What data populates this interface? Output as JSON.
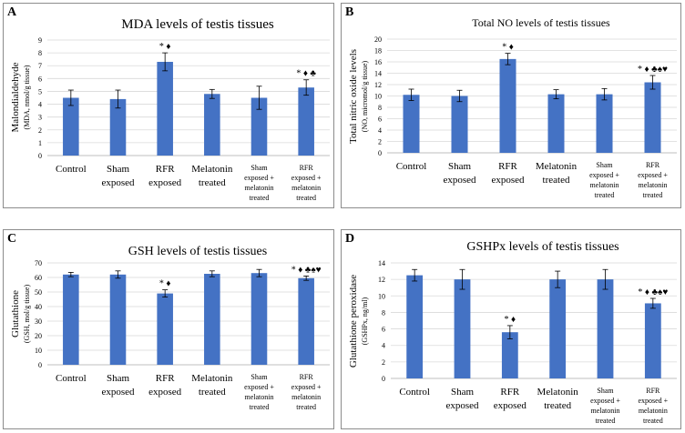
{
  "chart_data": [
    {
      "panel_label": "A",
      "type": "bar",
      "title": "MDA levels of testis tissues",
      "ylabel": "Malondialdehyde",
      "ylabel_sub": "(MDA, nmol/g tissue)",
      "xlabel": "",
      "ylim": [
        0,
        9
      ],
      "yticks": [
        "0",
        "1",
        "2",
        "3",
        "4",
        "5",
        "6",
        "7",
        "8",
        "9"
      ],
      "categories": [
        [
          "Control"
        ],
        [
          "Sham",
          "exposed"
        ],
        [
          "RFR",
          "exposed"
        ],
        [
          "Melatonin",
          "treated"
        ],
        [
          "Sham",
          "exposed +",
          "melatonin",
          "treated"
        ],
        [
          "RFR",
          "exposed +",
          "melatonin",
          "treated"
        ]
      ],
      "values": [
        4.5,
        4.4,
        7.3,
        4.8,
        4.5,
        5.3
      ],
      "errors": [
        0.6,
        0.7,
        0.7,
        0.35,
        0.9,
        0.6
      ],
      "annotations": [
        "",
        "",
        "* ♦",
        "",
        "",
        "* ♦ ♣"
      ],
      "bar_color": "#4472c4"
    },
    {
      "panel_label": "B",
      "type": "bar",
      "title": "Total NO levels of testis tissues",
      "ylabel": "Total nitric oxide levels",
      "ylabel_sub": "(NO, micromol/g tissue)",
      "xlabel": "",
      "ylim": [
        0,
        20
      ],
      "yticks": [
        "0",
        "2",
        "4",
        "6",
        "8",
        "10",
        "12",
        "14",
        "16",
        "18",
        "20"
      ],
      "categories": [
        [
          "Control"
        ],
        [
          "Sham",
          "exposed"
        ],
        [
          "RFR",
          "exposed"
        ],
        [
          "Melatonin",
          "treated"
        ],
        [
          "Sham",
          "exposed +",
          "melatonin",
          "treated"
        ],
        [
          "RFR",
          "exposed +",
          "melatonin",
          "treated"
        ]
      ],
      "values": [
        10.2,
        10.0,
        16.5,
        10.3,
        10.3,
        12.4
      ],
      "errors": [
        1.0,
        1.0,
        1.0,
        0.8,
        1.0,
        1.2
      ],
      "annotations": [
        "",
        "",
        "* ♦",
        "",
        "",
        "* ♦ ♣♠♥"
      ],
      "bar_color": "#4472c4"
    },
    {
      "panel_label": "C",
      "type": "bar",
      "title": "GSH levels of testis tissues",
      "ylabel": "Glutathione",
      "ylabel_sub": "(GSH, mol/g tissue)",
      "xlabel": "",
      "ylim": [
        0,
        70
      ],
      "yticks": [
        "0",
        "10",
        "20",
        "30",
        "40",
        "50",
        "60",
        "70"
      ],
      "categories": [
        [
          "Control"
        ],
        [
          "Sham",
          "exposed"
        ],
        [
          "RFR",
          "exposed"
        ],
        [
          "Melatonin",
          "treated"
        ],
        [
          "Sham",
          "exposed +",
          "melatonin",
          "treated"
        ],
        [
          "RFR",
          "exposed +",
          "melatonin",
          "treated"
        ]
      ],
      "values": [
        62,
        62,
        49,
        62.5,
        63,
        59.5
      ],
      "errors": [
        1.5,
        2.5,
        2.5,
        2.0,
        2.5,
        1.5
      ],
      "annotations": [
        "",
        "",
        "* ♦",
        "",
        "",
        "* ♦ ♣♠♥"
      ],
      "bar_color": "#4472c4"
    },
    {
      "panel_label": "D",
      "type": "bar",
      "title": "GSHPx levels of testis tissues",
      "ylabel": "Glutathione peroxidase",
      "ylabel_sub": "(GSHPx, ng/ml)",
      "xlabel": "",
      "ylim": [
        0,
        14
      ],
      "yticks": [
        "0",
        "2",
        "4",
        "6",
        "8",
        "10",
        "12",
        "14"
      ],
      "categories": [
        [
          "Control"
        ],
        [
          "Sham",
          "exposed"
        ],
        [
          "RFR",
          "exposed"
        ],
        [
          "Melatonin",
          "treated"
        ],
        [
          "Sham",
          "exposed +",
          "melatonin",
          "treated"
        ],
        [
          "RFR",
          "exposed +",
          "melatonin",
          "treated"
        ]
      ],
      "values": [
        12.5,
        12.0,
        5.6,
        12.0,
        12.0,
        9.1
      ],
      "errors": [
        0.7,
        1.2,
        0.8,
        1.0,
        1.2,
        0.6
      ],
      "annotations": [
        "",
        "",
        "* ♦",
        "",
        "",
        "* ♦ ♣♠♥"
      ],
      "bar_color": "#4472c4"
    }
  ]
}
